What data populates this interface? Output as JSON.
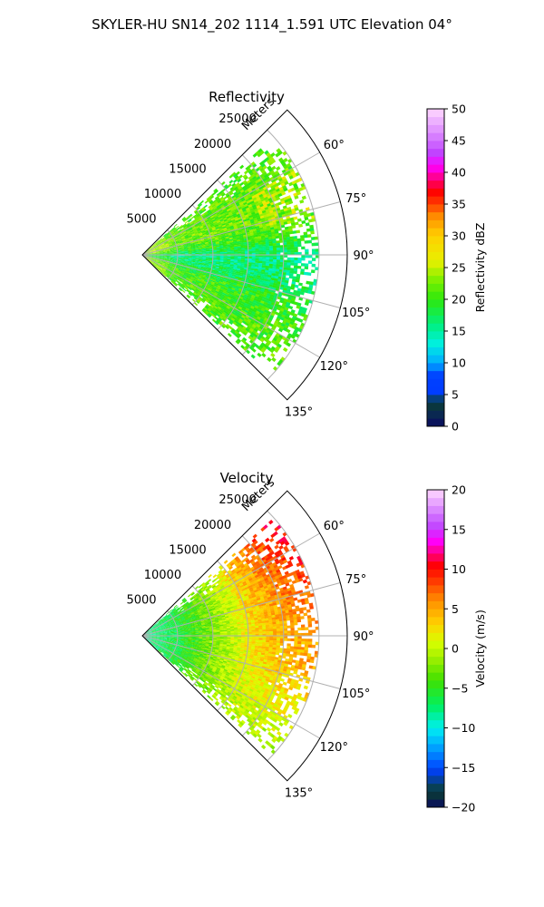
{
  "figure": {
    "suptitle": "SKYLER-HU  SN14_202  1114_1.591 UTC Elevation 04°"
  },
  "chart_data": [
    {
      "type": "heatmap",
      "title": "Reflectivity",
      "projection": "polar sector",
      "radial_label": "Meters",
      "radial_ticks": [
        5000,
        10000,
        15000,
        20000,
        25000
      ],
      "radial_tick_labels": [
        "5000",
        "10000",
        "15000",
        "20000",
        "25000"
      ],
      "rlim": [
        0,
        29000
      ],
      "azimuth_ticks": [
        60,
        75,
        90,
        105,
        120,
        135
      ],
      "azimuth_tick_labels": [
        "60°",
        "75°",
        "90°",
        "105°",
        "120°",
        "135°"
      ],
      "azimuth_range": [
        45,
        135
      ],
      "data_extent_m": [
        0,
        25000
      ],
      "grid": true,
      "colorbar": {
        "label": "Reflectivity dBZ",
        "range": [
          0,
          50
        ],
        "ticks": [
          0,
          5,
          10,
          15,
          20,
          25,
          30,
          35,
          40,
          45,
          50
        ],
        "tick_labels": [
          "0",
          "5",
          "10",
          "15",
          "20",
          "25",
          "30",
          "35",
          "40",
          "45",
          "50"
        ]
      },
      "field_profile": {
        "azimuth": [
          50,
          60,
          70,
          80,
          90,
          100,
          110,
          120,
          130,
          135
        ],
        "typical_value": [
          21,
          22,
          22,
          21,
          16,
          17,
          20,
          21,
          21,
          20
        ],
        "spread": 3
      },
      "colors": {
        "background_min": "#0a0a60",
        "mid": "#2ee80c",
        "high": "#ff1a00",
        "max": "#ffd8ff"
      }
    },
    {
      "type": "heatmap",
      "title": "Velocity",
      "projection": "polar sector",
      "radial_label": "Meters",
      "radial_ticks": [
        5000,
        10000,
        15000,
        20000,
        25000
      ],
      "radial_tick_labels": [
        "5000",
        "10000",
        "15000",
        "20000",
        "25000"
      ],
      "rlim": [
        0,
        29000
      ],
      "azimuth_ticks": [
        60,
        75,
        90,
        105,
        120,
        135
      ],
      "azimuth_tick_labels": [
        "60°",
        "75°",
        "90°",
        "105°",
        "120°",
        "135°"
      ],
      "azimuth_range": [
        45,
        135
      ],
      "data_extent_m": [
        0,
        25000
      ],
      "grid": true,
      "colorbar": {
        "label": "Velocity (m/s)",
        "range": [
          -20,
          20
        ],
        "ticks": [
          -20,
          -15,
          -10,
          -5,
          0,
          5,
          10,
          15,
          20
        ],
        "tick_labels": [
          "−20",
          "−15",
          "−10",
          "−5",
          "0",
          "5",
          "10",
          "15",
          "20"
        ]
      },
      "field_profile": {
        "range_m": [
          0,
          5000,
          10000,
          15000,
          20000,
          25000
        ],
        "near_value": [
          -8,
          -6,
          -2,
          2,
          4,
          5
        ],
        "north_far_value": 10,
        "south_far_value": -2,
        "spread": 2
      },
      "colors": {
        "min": "#0a0a60",
        "zero": "#c8ff00",
        "high": "#ff1a00",
        "max": "#ffd8ff"
      }
    }
  ]
}
